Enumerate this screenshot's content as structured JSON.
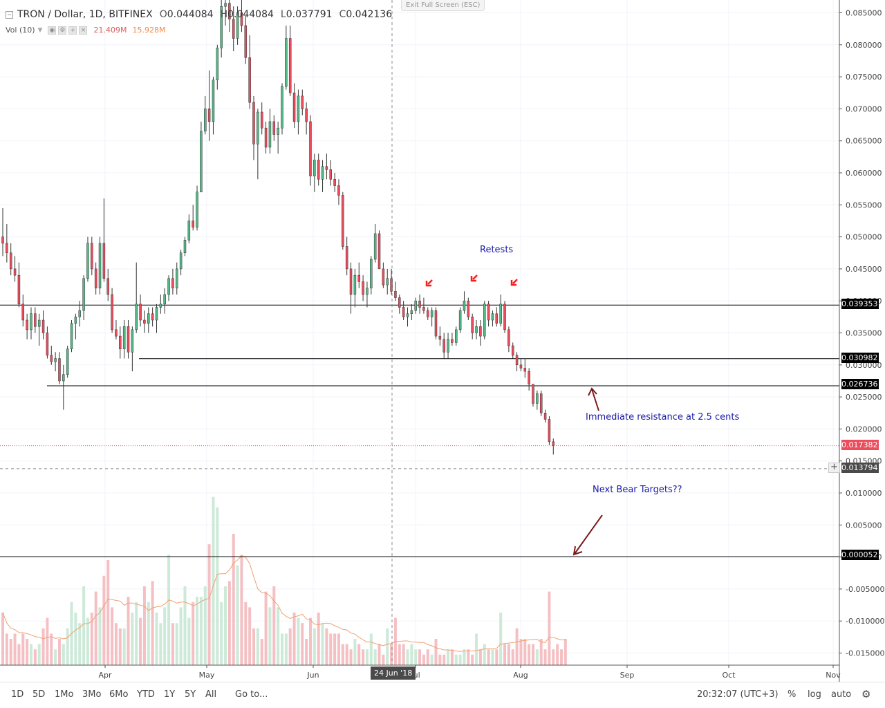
{
  "legend": {
    "symbol": "TRON / Dollar, 1D, BITFINEX",
    "open_label": "O",
    "open": "0.044084",
    "high_label": "H",
    "high": "0.044084",
    "low_label": "L",
    "low": "0.037791",
    "close_label": "C",
    "close": "0.042136",
    "vol_label": "Vol (10)",
    "vol_value1": "21.409M",
    "vol_value2": "15.928M"
  },
  "exit_fullscreen": "Exit Full Screen (ESC)",
  "price_axis": {
    "ticks": [
      "0.085000",
      "0.080000",
      "0.075000",
      "0.070000",
      "0.065000",
      "0.060000",
      "0.055000",
      "0.050000",
      "0.045000",
      "0.040000",
      "0.035000",
      "0.030000",
      "0.025000",
      "0.020000",
      "0.015000",
      "0.010000",
      "0.005000",
      "0.000000",
      "-0.005000",
      "-0.010000",
      "-0.015000"
    ]
  },
  "time_axis": {
    "labels": [
      "Apr",
      "May",
      "Jun",
      "Jul",
      "Aug",
      "Sep",
      "Oct",
      "Nov"
    ],
    "crosshair_date": "24 Jun '18"
  },
  "price_tags": {
    "level1": "0.039353",
    "level2": "0.030982",
    "level3": "0.026736",
    "last": "0.017382",
    "crosshair": "0.013794",
    "target": "0.000052"
  },
  "annotations": {
    "retests": "Retests",
    "resistance": "Immediate resistance at 2.5 cents",
    "bear": "Next Bear Targets??"
  },
  "timeframes": [
    "1D",
    "5D",
    "1Mo",
    "3Mo",
    "6Mo",
    "YTD",
    "1Y",
    "5Y",
    "All"
  ],
  "goto_label": "Go to...",
  "clock": "20:32:07 (UTC+3)",
  "right_buttons": {
    "percent": "%",
    "log": "log",
    "auto": "auto"
  },
  "colors": {
    "up": "#53b987",
    "down": "#eb4d5c",
    "vol_up": "#cde9d8",
    "vol_down": "#f4c0c4",
    "ma": "#f0a070",
    "annotation_text": "#1a1aa6",
    "arrow": "#7a1a1a",
    "marker": "#ff1a1a"
  },
  "chart_data": {
    "type": "candlestick",
    "title": "TRON / Dollar, 1D, BITFINEX",
    "x_range": [
      "Mar",
      "Nov"
    ],
    "y_range": [
      -0.0175,
      0.0865
    ],
    "levels": [
      0.039353,
      0.030982,
      0.026736,
      5.2e-05
    ],
    "last_price": 0.017382,
    "crosshair_price": 0.013794,
    "crosshair_date": "24 Jun '18",
    "candles": [
      [
        0.05,
        0.0545,
        0.047,
        0.049
      ],
      [
        0.049,
        0.052,
        0.046,
        0.0475
      ],
      [
        0.0475,
        0.049,
        0.044,
        0.045
      ],
      [
        0.045,
        0.047,
        0.043,
        0.044
      ],
      [
        0.044,
        0.046,
        0.039,
        0.0395
      ],
      [
        0.0395,
        0.041,
        0.036,
        0.037
      ],
      [
        0.037,
        0.038,
        0.034,
        0.0355
      ],
      [
        0.0355,
        0.039,
        0.034,
        0.038
      ],
      [
        0.038,
        0.039,
        0.035,
        0.036
      ],
      [
        0.036,
        0.038,
        0.033,
        0.037
      ],
      [
        0.037,
        0.0385,
        0.034,
        0.035
      ],
      [
        0.035,
        0.036,
        0.031,
        0.0315
      ],
      [
        0.0315,
        0.033,
        0.03,
        0.0305
      ],
      [
        0.0305,
        0.032,
        0.029,
        0.031
      ],
      [
        0.031,
        0.032,
        0.027,
        0.0275
      ],
      [
        0.0275,
        0.03,
        0.023,
        0.0285
      ],
      [
        0.0285,
        0.033,
        0.028,
        0.0325
      ],
      [
        0.0325,
        0.037,
        0.032,
        0.0365
      ],
      [
        0.0365,
        0.038,
        0.034,
        0.0375
      ],
      [
        0.0375,
        0.04,
        0.036,
        0.0385
      ],
      [
        0.0385,
        0.044,
        0.037,
        0.0435
      ],
      [
        0.0435,
        0.05,
        0.043,
        0.049
      ],
      [
        0.049,
        0.05,
        0.044,
        0.045
      ],
      [
        0.045,
        0.046,
        0.041,
        0.042
      ],
      [
        0.042,
        0.05,
        0.041,
        0.049
      ],
      [
        0.049,
        0.056,
        0.043,
        0.0435
      ],
      [
        0.0435,
        0.045,
        0.04,
        0.041
      ],
      [
        0.041,
        0.042,
        0.035,
        0.0355
      ],
      [
        0.0355,
        0.037,
        0.034,
        0.0345
      ],
      [
        0.0345,
        0.036,
        0.031,
        0.0325
      ],
      [
        0.0325,
        0.037,
        0.031,
        0.036
      ],
      [
        0.036,
        0.037,
        0.031,
        0.032
      ],
      [
        0.032,
        0.036,
        0.029,
        0.0355
      ],
      [
        0.0355,
        0.046,
        0.035,
        0.0395
      ],
      [
        0.0395,
        0.041,
        0.036,
        0.037
      ],
      [
        0.037,
        0.0385,
        0.035,
        0.0365
      ],
      [
        0.0365,
        0.039,
        0.035,
        0.038
      ],
      [
        0.038,
        0.039,
        0.036,
        0.037
      ],
      [
        0.037,
        0.0395,
        0.035,
        0.039
      ],
      [
        0.039,
        0.041,
        0.038,
        0.0395
      ],
      [
        0.0395,
        0.042,
        0.038,
        0.041
      ],
      [
        0.041,
        0.044,
        0.04,
        0.0435
      ],
      [
        0.0435,
        0.045,
        0.041,
        0.042
      ],
      [
        0.042,
        0.046,
        0.041,
        0.045
      ],
      [
        0.045,
        0.048,
        0.044,
        0.0475
      ],
      [
        0.0475,
        0.05,
        0.047,
        0.0495
      ],
      [
        0.0495,
        0.0535,
        0.049,
        0.0525
      ],
      [
        0.0525,
        0.055,
        0.051,
        0.0515
      ],
      [
        0.0515,
        0.058,
        0.051,
        0.057
      ],
      [
        0.057,
        0.068,
        0.057,
        0.0665
      ],
      [
        0.0665,
        0.072,
        0.066,
        0.07
      ],
      [
        0.07,
        0.076,
        0.065,
        0.068
      ],
      [
        0.068,
        0.075,
        0.066,
        0.0745
      ],
      [
        0.0745,
        0.08,
        0.073,
        0.0795
      ],
      [
        0.0795,
        0.09,
        0.078,
        0.086
      ],
      [
        0.086,
        0.09,
        0.083,
        0.0865
      ],
      [
        0.0865,
        0.0875,
        0.082,
        0.084
      ],
      [
        0.084,
        0.086,
        0.079,
        0.081
      ],
      [
        0.081,
        0.086,
        0.08,
        0.085
      ],
      [
        0.085,
        0.0875,
        0.082,
        0.083
      ],
      [
        0.083,
        0.0845,
        0.077,
        0.078
      ],
      [
        0.078,
        0.0815,
        0.07,
        0.071
      ],
      [
        0.071,
        0.072,
        0.062,
        0.0645
      ],
      [
        0.0645,
        0.07,
        0.059,
        0.0695
      ],
      [
        0.0695,
        0.071,
        0.066,
        0.067
      ],
      [
        0.067,
        0.068,
        0.063,
        0.064
      ],
      [
        0.064,
        0.07,
        0.063,
        0.068
      ],
      [
        0.068,
        0.069,
        0.065,
        0.066
      ],
      [
        0.066,
        0.068,
        0.063,
        0.067
      ],
      [
        0.067,
        0.074,
        0.066,
        0.0735
      ],
      [
        0.0735,
        0.083,
        0.073,
        0.081
      ],
      [
        0.081,
        0.083,
        0.072,
        0.0725
      ],
      [
        0.0725,
        0.074,
        0.067,
        0.068
      ],
      [
        0.068,
        0.073,
        0.066,
        0.072
      ],
      [
        0.072,
        0.073,
        0.069,
        0.07
      ],
      [
        0.07,
        0.071,
        0.066,
        0.068
      ],
      [
        0.068,
        0.069,
        0.058,
        0.0595
      ],
      [
        0.0595,
        0.063,
        0.057,
        0.062
      ],
      [
        0.062,
        0.063,
        0.058,
        0.059
      ],
      [
        0.059,
        0.062,
        0.057,
        0.061
      ],
      [
        0.061,
        0.063,
        0.059,
        0.0605
      ],
      [
        0.0605,
        0.062,
        0.058,
        0.059
      ],
      [
        0.059,
        0.06,
        0.057,
        0.058
      ],
      [
        0.058,
        0.059,
        0.055,
        0.0565
      ],
      [
        0.0565,
        0.057,
        0.048,
        0.0485
      ],
      [
        0.0485,
        0.05,
        0.044,
        0.045
      ],
      [
        0.045,
        0.046,
        0.038,
        0.041
      ],
      [
        0.041,
        0.045,
        0.039,
        0.044
      ],
      [
        0.044,
        0.046,
        0.042,
        0.043
      ],
      [
        0.043,
        0.044,
        0.04,
        0.041
      ],
      [
        0.041,
        0.043,
        0.039,
        0.042
      ],
      [
        0.042,
        0.047,
        0.041,
        0.0465
      ],
      [
        0.0465,
        0.052,
        0.046,
        0.0505
      ],
      [
        0.0505,
        0.051,
        0.045,
        0.045
      ],
      [
        0.045,
        0.046,
        0.042,
        0.0425
      ],
      [
        0.0425,
        0.045,
        0.041,
        0.0435
      ],
      [
        0.0435,
        0.045,
        0.041,
        0.0415
      ],
      [
        0.0415,
        0.043,
        0.04,
        0.0405
      ],
      [
        0.0405,
        0.041,
        0.038,
        0.039
      ],
      [
        0.039,
        0.04,
        0.037,
        0.0375
      ],
      [
        0.0375,
        0.039,
        0.036,
        0.038
      ],
      [
        0.038,
        0.0395,
        0.037,
        0.0385
      ],
      [
        0.0385,
        0.0405,
        0.038,
        0.04
      ],
      [
        0.04,
        0.041,
        0.038,
        0.039
      ],
      [
        0.039,
        0.0405,
        0.038,
        0.0385
      ],
      [
        0.0385,
        0.039,
        0.037,
        0.0375
      ],
      [
        0.0375,
        0.039,
        0.036,
        0.0385
      ],
      [
        0.0385,
        0.039,
        0.034,
        0.0345
      ],
      [
        0.0345,
        0.036,
        0.033,
        0.034
      ],
      [
        0.034,
        0.035,
        0.031,
        0.032
      ],
      [
        0.032,
        0.035,
        0.031,
        0.034
      ],
      [
        0.034,
        0.035,
        0.033,
        0.0335
      ],
      [
        0.0335,
        0.036,
        0.033,
        0.0355
      ],
      [
        0.0355,
        0.039,
        0.035,
        0.0385
      ],
      [
        0.0385,
        0.0415,
        0.038,
        0.04
      ],
      [
        0.04,
        0.0405,
        0.037,
        0.0375
      ],
      [
        0.0375,
        0.038,
        0.034,
        0.035
      ],
      [
        0.035,
        0.037,
        0.034,
        0.036
      ],
      [
        0.036,
        0.037,
        0.033,
        0.0345
      ],
      [
        0.0345,
        0.04,
        0.034,
        0.0395
      ],
      [
        0.0395,
        0.04,
        0.036,
        0.037
      ],
      [
        0.037,
        0.0385,
        0.036,
        0.038
      ],
      [
        0.038,
        0.039,
        0.036,
        0.0365
      ],
      [
        0.0365,
        0.041,
        0.036,
        0.0395
      ],
      [
        0.0395,
        0.04,
        0.035,
        0.0355
      ],
      [
        0.0355,
        0.036,
        0.032,
        0.033
      ],
      [
        0.033,
        0.0335,
        0.031,
        0.0315
      ],
      [
        0.0315,
        0.032,
        0.029,
        0.03
      ],
      [
        0.03,
        0.031,
        0.029,
        0.0295
      ],
      [
        0.0295,
        0.031,
        0.028,
        0.029
      ],
      [
        0.029,
        0.0295,
        0.026,
        0.027
      ],
      [
        0.027,
        0.027,
        0.0235,
        0.024
      ],
      [
        0.024,
        0.026,
        0.023,
        0.0255
      ],
      [
        0.0255,
        0.026,
        0.022,
        0.0225
      ],
      [
        0.0225,
        0.023,
        0.021,
        0.0215
      ],
      [
        0.0215,
        0.022,
        0.0175,
        0.018
      ],
      [
        0.018,
        0.0185,
        0.016,
        0.017382
      ]
    ],
    "volume_unit": "M (approx.)",
    "volumes": [
      10,
      6,
      5,
      6,
      4,
      6,
      5,
      4,
      3,
      4,
      7,
      9,
      6,
      3,
      5,
      4,
      7,
      12,
      10,
      8,
      15,
      9,
      10,
      14,
      11,
      17,
      20,
      11,
      8,
      7,
      7,
      13,
      10,
      12,
      9,
      15,
      12,
      16,
      10,
      8,
      11,
      21,
      8,
      8,
      11,
      15,
      9,
      12,
      13,
      13,
      15,
      23,
      32,
      30,
      12,
      15,
      16,
      25,
      19,
      21,
      12,
      11,
      7,
      7,
      5,
      14,
      11,
      15,
      11,
      6,
      6,
      7,
      10,
      9,
      8,
      5,
      9,
      7,
      10,
      8,
      7,
      6,
      6,
      6,
      4,
      4,
      3,
      5,
      4,
      3,
      3,
      6,
      3,
      4,
      2,
      7,
      4,
      9,
      4,
      4,
      3,
      4,
      3,
      3,
      2,
      3,
      2,
      5,
      2,
      2,
      3,
      3,
      2,
      2,
      3,
      3,
      2,
      6,
      3,
      4,
      3,
      3,
      3,
      10,
      4,
      4,
      3,
      7,
      5,
      5,
      4,
      4,
      3,
      5,
      3,
      14,
      3,
      4,
      3,
      5
    ],
    "volume_ma_period": 10
  }
}
